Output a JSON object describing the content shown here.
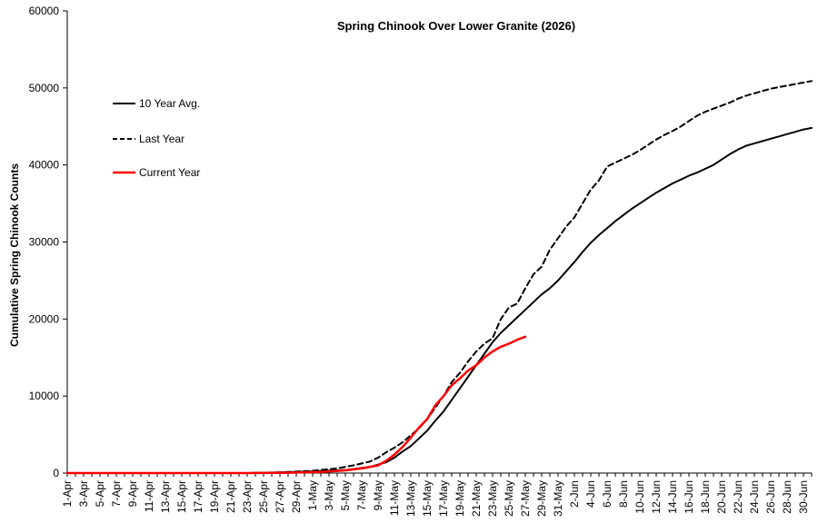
{
  "chart_data": {
    "type": "line",
    "title": "Spring Chinook Over Lower Granite (2026)",
    "xlabel": "",
    "ylabel": "Cumulative Spring Chinook Counts",
    "ylim": [
      0,
      60000
    ],
    "yticks": [
      0,
      10000,
      20000,
      30000,
      40000,
      50000,
      60000
    ],
    "grid": false,
    "legend_position": "upper-left",
    "x_tick_labels": [
      "1-Apr",
      "3-Apr",
      "5-Apr",
      "7-Apr",
      "9-Apr",
      "11-Apr",
      "13-Apr",
      "15-Apr",
      "17-Apr",
      "19-Apr",
      "21-Apr",
      "23-Apr",
      "25-Apr",
      "27-Apr",
      "29-Apr",
      "1-May",
      "3-May",
      "5-May",
      "7-May",
      "9-May",
      "11-May",
      "13-May",
      "15-May",
      "17-May",
      "19-May",
      "21-May",
      "23-May",
      "25-May",
      "27-May",
      "29-May",
      "31-May",
      "2-Jun",
      "4-Jun",
      "6-Jun",
      "8-Jun",
      "10-Jun",
      "12-Jun",
      "14-Jun",
      "16-Jun",
      "18-Jun",
      "20-Jun",
      "22-Jun",
      "24-Jun",
      "26-Jun",
      "28-Jun",
      "30-Jun"
    ],
    "series": [
      {
        "name": "10 Year Avg.",
        "color": "#000000",
        "dash": "solid",
        "points": [
          [
            0,
            0
          ],
          [
            22,
            0
          ],
          [
            26,
            80
          ],
          [
            30,
            200
          ],
          [
            34,
            400
          ],
          [
            37,
            800
          ],
          [
            39,
            1400
          ],
          [
            40,
            2000
          ],
          [
            41,
            2800
          ],
          [
            42,
            3500
          ],
          [
            43,
            4500
          ],
          [
            44,
            5500
          ],
          [
            45,
            6800
          ],
          [
            46,
            8000
          ],
          [
            47,
            9500
          ],
          [
            48,
            11000
          ],
          [
            49,
            12500
          ],
          [
            50,
            14000
          ],
          [
            51,
            15500
          ],
          [
            52,
            17000
          ],
          [
            53,
            18200
          ],
          [
            54,
            19200
          ],
          [
            55,
            20200
          ],
          [
            56,
            21200
          ],
          [
            57,
            22200
          ],
          [
            58,
            23200
          ],
          [
            59,
            24000
          ],
          [
            60,
            25000
          ],
          [
            61,
            26200
          ],
          [
            62,
            27400
          ],
          [
            63,
            28700
          ],
          [
            64,
            29900
          ],
          [
            65,
            30900
          ],
          [
            66,
            31800
          ],
          [
            67,
            32700
          ],
          [
            68,
            33500
          ],
          [
            69,
            34300
          ],
          [
            70,
            35000
          ],
          [
            71,
            35700
          ],
          [
            72,
            36400
          ],
          [
            73,
            37000
          ],
          [
            74,
            37600
          ],
          [
            75,
            38100
          ],
          [
            76,
            38600
          ],
          [
            77,
            39000
          ],
          [
            78,
            39500
          ],
          [
            79,
            40000
          ],
          [
            80,
            40700
          ],
          [
            81,
            41400
          ],
          [
            82,
            42000
          ],
          [
            83,
            42500
          ],
          [
            84,
            42800
          ],
          [
            85,
            43100
          ],
          [
            86,
            43400
          ],
          [
            87,
            43700
          ],
          [
            88,
            44000
          ],
          [
            89,
            44300
          ],
          [
            90,
            44600
          ],
          [
            91,
            44800
          ]
        ]
      },
      {
        "name": "Last Year",
        "color": "#000000",
        "dash": "dashed",
        "points": [
          [
            0,
            0
          ],
          [
            22,
            0
          ],
          [
            26,
            100
          ],
          [
            30,
            300
          ],
          [
            33,
            600
          ],
          [
            35,
            1000
          ],
          [
            37,
            1500
          ],
          [
            38,
            2000
          ],
          [
            39,
            2700
          ],
          [
            40,
            3300
          ],
          [
            41,
            4000
          ],
          [
            42,
            4900
          ],
          [
            43,
            5800
          ],
          [
            44,
            7000
          ],
          [
            45,
            8500
          ],
          [
            46,
            10000
          ],
          [
            47,
            11800
          ],
          [
            48,
            13000
          ],
          [
            49,
            14500
          ],
          [
            50,
            15800
          ],
          [
            51,
            16800
          ],
          [
            52,
            17500
          ],
          [
            53,
            20000
          ],
          [
            54,
            21500
          ],
          [
            55,
            22000
          ],
          [
            56,
            24000
          ],
          [
            57,
            25800
          ],
          [
            58,
            26800
          ],
          [
            59,
            29000
          ],
          [
            60,
            30500
          ],
          [
            61,
            32000
          ],
          [
            62,
            33200
          ],
          [
            63,
            35000
          ],
          [
            64,
            36800
          ],
          [
            65,
            38000
          ],
          [
            66,
            39800
          ],
          [
            67,
            40300
          ],
          [
            68,
            40800
          ],
          [
            69,
            41300
          ],
          [
            70,
            41900
          ],
          [
            71,
            42600
          ],
          [
            72,
            43300
          ],
          [
            73,
            43900
          ],
          [
            74,
            44400
          ],
          [
            75,
            45000
          ],
          [
            76,
            45700
          ],
          [
            77,
            46400
          ],
          [
            78,
            46900
          ],
          [
            79,
            47300
          ],
          [
            80,
            47700
          ],
          [
            81,
            48100
          ],
          [
            82,
            48600
          ],
          [
            83,
            49000
          ],
          [
            84,
            49300
          ],
          [
            85,
            49600
          ],
          [
            86,
            49900
          ],
          [
            87,
            50100
          ],
          [
            88,
            50300
          ],
          [
            89,
            50500
          ],
          [
            90,
            50700
          ],
          [
            91,
            50900
          ]
        ]
      },
      {
        "name": "Current Year",
        "color": "#ff0000",
        "dash": "solid",
        "points": [
          [
            0,
            0
          ],
          [
            22,
            0
          ],
          [
            27,
            50
          ],
          [
            31,
            150
          ],
          [
            34,
            350
          ],
          [
            36,
            600
          ],
          [
            38,
            1000
          ],
          [
            39,
            1600
          ],
          [
            40,
            2400
          ],
          [
            41,
            3400
          ],
          [
            42,
            4600
          ],
          [
            43,
            5900
          ],
          [
            44,
            7000
          ],
          [
            45,
            8800
          ],
          [
            46,
            10000
          ],
          [
            47,
            11400
          ],
          [
            48,
            12300
          ],
          [
            49,
            13300
          ],
          [
            50,
            14000
          ],
          [
            51,
            15000
          ],
          [
            52,
            15800
          ],
          [
            53,
            16400
          ],
          [
            54,
            16800
          ],
          [
            55,
            17300
          ],
          [
            56,
            17700
          ]
        ]
      }
    ]
  }
}
